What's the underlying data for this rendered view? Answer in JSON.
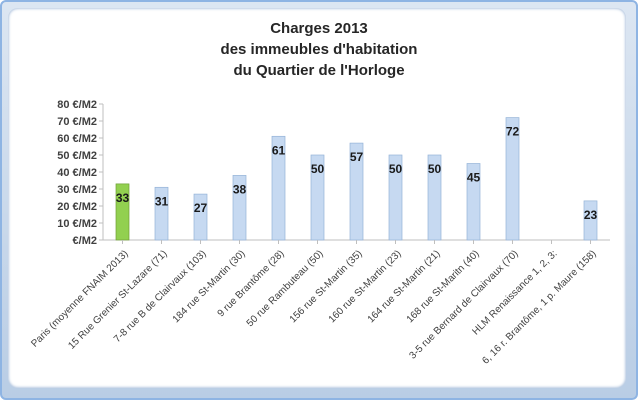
{
  "chart_data": {
    "type": "bar",
    "title": [
      "Charges 2013",
      "des immeubles d'habitation",
      "du Quartier de l'Horloge"
    ],
    "xlabel": "",
    "ylabel": "",
    "ylim": [
      0,
      80
    ],
    "yticks": [
      0,
      10,
      20,
      30,
      40,
      50,
      60,
      70,
      80
    ],
    "ytick_labels": [
      "€/M2",
      "10 €/M2",
      "20 €/M2",
      "30 €/M2",
      "40 €/M2",
      "50 €/M2",
      "60 €/M2",
      "70 €/M2",
      "80 €/M2"
    ],
    "categories": [
      "Paris (moyenne FNAIM 2013)",
      "15 Rue Grenier St-Lazare   (71)",
      "7-8 rue B de Clairvaux   (103)",
      "184 rue St-Martin   (30)",
      "9 rue Brantôme   (28)",
      "50 rue Rambuteau   (50)",
      "156 rue St-Martin   (35)",
      "160 rue St-Martin   (23)",
      "164 rue St-Martin   (21)",
      "168 rue St-Maritn   (40)",
      "3-5 rue Bernard de Clairvaux   (70)",
      "HLM Renaissance 1, 2, 3:",
      "6, 16 r. Brantôme, 1 p. Maure   (158)"
    ],
    "values": [
      33,
      31,
      27,
      38,
      61,
      50,
      57,
      50,
      50,
      45,
      72,
      null,
      23
    ],
    "highlight_index": 0,
    "colors": {
      "bar": "#c6d9f1",
      "bar_border": "#95b3d7",
      "highlight": "#92d050",
      "highlight_border": "#6f9f35"
    },
    "grid": false,
    "legend": "none"
  }
}
